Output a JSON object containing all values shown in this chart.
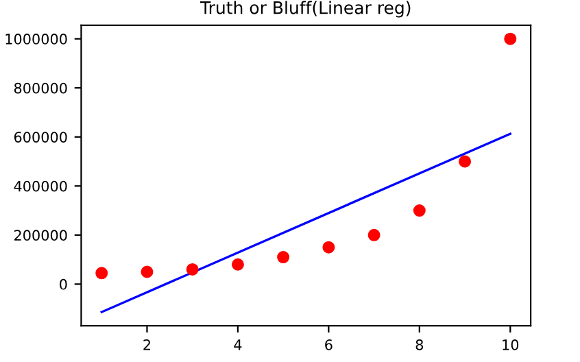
{
  "chart_data": {
    "type": "scatter",
    "title": "Truth or Bluff(Linear reg)",
    "series": [
      {
        "color": "#ff0000",
        "marker": "circle",
        "x": [
          1,
          2,
          3,
          4,
          5,
          6,
          7,
          8,
          9,
          10
        ],
        "values": [
          45000,
          50000,
          60000,
          80000,
          110000,
          150000,
          200000,
          300000,
          500000,
          1000000
        ]
      },
      {
        "type": "line",
        "marker": "none",
        "color": "#0000ff",
        "x": [
          1,
          10
        ],
        "values": [
          -114000,
          613000
        ]
      }
    ],
    "xlim": [
      0.55,
      10.45
    ],
    "ylim": [
      -170000,
      1055000
    ],
    "xticks": [
      2,
      4,
      6,
      8,
      10
    ],
    "yticks": [
      0,
      200000,
      400000,
      600000,
      800000,
      1000000
    ]
  }
}
